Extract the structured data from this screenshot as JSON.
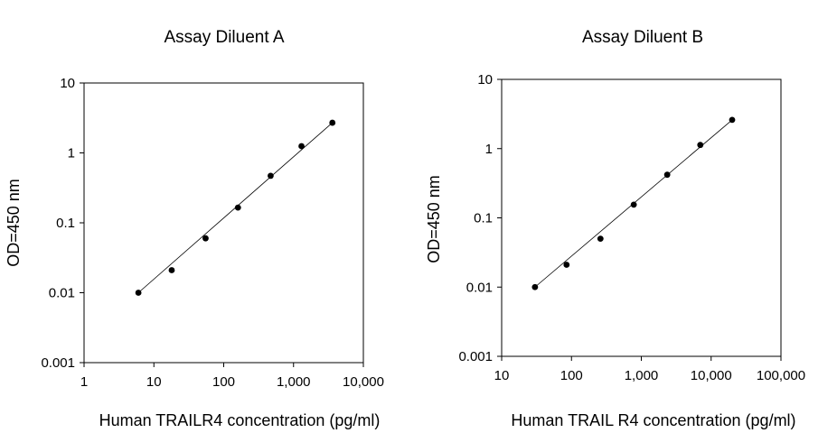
{
  "chart_data": [
    {
      "type": "scatter",
      "title": "Assay Diluent A",
      "xlabel": "Human TRAILR4 concentration (pg/ml)",
      "ylabel": "OD=450 nm",
      "x_scale": "log",
      "y_scale": "log",
      "xlim": [
        1,
        10000
      ],
      "ylim": [
        0.001,
        10
      ],
      "x_ticks": [
        1,
        10,
        100,
        1000,
        10000
      ],
      "x_tick_labels": [
        "1",
        "10",
        "100",
        "1,000",
        "10,000"
      ],
      "y_ticks": [
        0.001,
        0.01,
        0.1,
        1,
        10
      ],
      "y_tick_labels": [
        "0.001",
        "0.01",
        "0.1",
        "1",
        "10"
      ],
      "grid": false,
      "trendline": true,
      "points": [
        {
          "x": 6,
          "y": 0.01
        },
        {
          "x": 18,
          "y": 0.021
        },
        {
          "x": 55,
          "y": 0.06
        },
        {
          "x": 160,
          "y": 0.165
        },
        {
          "x": 470,
          "y": 0.47
        },
        {
          "x": 1300,
          "y": 1.25
        },
        {
          "x": 3600,
          "y": 2.7
        }
      ]
    },
    {
      "type": "scatter",
      "title": "Assay Diluent B",
      "xlabel": "Human TRAIL R4 concentration (pg/ml)",
      "ylabel": "OD=450 nm",
      "x_scale": "log",
      "y_scale": "log",
      "xlim": [
        10,
        100000
      ],
      "ylim": [
        0.001,
        10
      ],
      "x_ticks": [
        10,
        100,
        1000,
        10000,
        100000
      ],
      "x_tick_labels": [
        "10",
        "100",
        "1,000",
        "10,000",
        "100,000"
      ],
      "y_ticks": [
        0.001,
        0.01,
        0.1,
        1,
        10
      ],
      "y_tick_labels": [
        "0.001",
        "0.01",
        "0.1",
        "1",
        "10"
      ],
      "grid": false,
      "trendline": true,
      "points": [
        {
          "x": 30,
          "y": 0.01
        },
        {
          "x": 85,
          "y": 0.021
        },
        {
          "x": 260,
          "y": 0.05
        },
        {
          "x": 780,
          "y": 0.155
        },
        {
          "x": 2350,
          "y": 0.42
        },
        {
          "x": 7000,
          "y": 1.13
        },
        {
          "x": 20000,
          "y": 2.6
        }
      ]
    }
  ]
}
